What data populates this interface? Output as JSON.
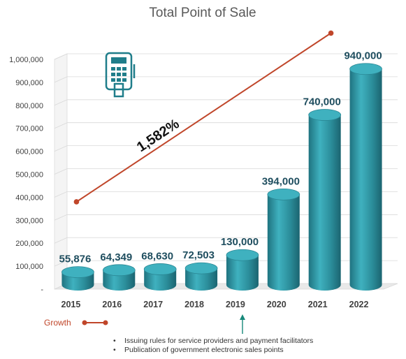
{
  "chart_data": {
    "type": "bar",
    "style": "3d-cylinder",
    "title": "Total Point of Sale",
    "categories": [
      "2015",
      "2016",
      "2017",
      "2018",
      "2019",
      "2020",
      "2021",
      "2022"
    ],
    "values": [
      55876,
      64349,
      68630,
      72503,
      130000,
      394000,
      740000,
      940000
    ],
    "data_labels": [
      "55,876",
      "64,349",
      "68,630",
      "72,503",
      "130,000",
      "394,000",
      "740,000",
      "940,000"
    ],
    "y_ticks": [
      0,
      100000,
      200000,
      300000,
      400000,
      500000,
      600000,
      700000,
      800000,
      900000,
      1000000
    ],
    "y_tick_labels": [
      "-",
      "100,000",
      "200,000",
      "300,000",
      "400,000",
      "500,000",
      "600,000",
      "700,000",
      "800,000",
      "900,000",
      "1,000,000"
    ],
    "ylim": [
      0,
      1000000
    ],
    "grid": true,
    "growth_line": {
      "label": "1,582%",
      "from_value": 380000,
      "to_value": 1090000
    },
    "legend": {
      "label": "Growth",
      "position": "bottom-left"
    },
    "annotation_category": "2019",
    "colors": {
      "bar": "#2e96a4",
      "bar_top": "#3fb1bf",
      "growth": "#c0462a",
      "label": "#1f4e5f"
    }
  },
  "notes": [
    "Issuing rules for service providers and payment facilitators",
    "Publication of government electronic sales points"
  ],
  "icon": "pos-terminal-icon"
}
